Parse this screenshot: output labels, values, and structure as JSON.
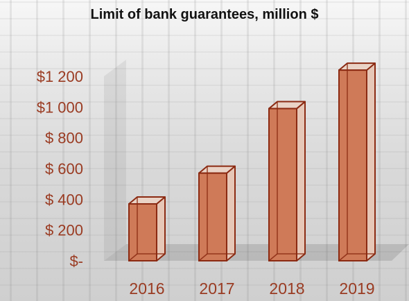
{
  "chart_data": {
    "type": "bar",
    "title": "Limit of bank guarantees, million $",
    "categories": [
      "2016",
      "2017",
      "2018",
      "2019"
    ],
    "values": [
      370,
      570,
      990,
      1240
    ],
    "ylim": [
      0,
      1200
    ],
    "yticks": [
      0,
      200,
      400,
      600,
      800,
      1000,
      1200
    ],
    "ytick_labels": [
      "$-",
      "$ 200",
      "$ 400",
      "$ 600",
      "$ 800",
      "$1 000",
      "$1 200"
    ],
    "grid": false,
    "legend": "none",
    "colors": {
      "bar_fill": "#cf7a58",
      "bar_top": "#ead3c6",
      "bar_side": "#e6c7b7",
      "bar_edge": "#8b2a12",
      "tick_text": "#9a3b22",
      "title_text": "#111111"
    }
  }
}
